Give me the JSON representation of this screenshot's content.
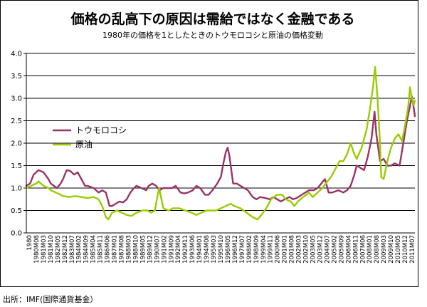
{
  "chart_data": {
    "type": "line",
    "title": "価格の乱高下の原因は需給ではなく金融である",
    "subtitle": "1980年の価格を1としたときのトウモロコシと原油の価格変動",
    "xlabel": "",
    "ylabel": "",
    "ylim": [
      0.0,
      4.0
    ],
    "yticks": [
      "0.0",
      "0.5",
      "1.0",
      "1.5",
      "2.0",
      "2.5",
      "3.0",
      "3.5",
      "4.0"
    ],
    "grid": true,
    "legend_position": "left-middle",
    "x_tick_labels": [
      "1980",
      "1980M08",
      "1981M03",
      "1981M10",
      "1982M05",
      "1982M12",
      "1983M07",
      "1984M02",
      "1984M09",
      "1985M04",
      "1985M11",
      "1986M06",
      "1987M01",
      "1987M08",
      "1988M03",
      "1988M10",
      "1989M05",
      "1989M12",
      "1990M07",
      "1991M02",
      "1991M09",
      "1992M04",
      "1992M11",
      "1993M06",
      "1994M01",
      "1994M08",
      "1995M03",
      "1995M10",
      "1996M05",
      "1996M12",
      "1997M07",
      "1998M02",
      "1998M09",
      "1999M04",
      "1999M11",
      "2000M06",
      "2001M01",
      "2001M08",
      "2002M03",
      "2002M10",
      "2003M05",
      "2003M12",
      "2004M07",
      "2005M02",
      "2005M09",
      "2006M04",
      "2006M11",
      "2007M06",
      "2008M01",
      "2008M08",
      "2009M03",
      "2009M10",
      "2010M05",
      "2010M12",
      "2011M07"
    ],
    "x": [
      1980.0,
      1981.0,
      1982.0,
      1983.0,
      1984.0,
      1985.0,
      1986.0,
      1987.0,
      1988.0,
      1989.0,
      1990.0,
      1991.0,
      1992.0,
      1993.0,
      1994.0,
      1995.0,
      1996.0,
      1997.0,
      1998.0,
      1999.0,
      2000.0,
      2001.0,
      2002.0,
      2003.0,
      2004.0,
      2005.0,
      2006.0,
      2007.0,
      2008.0,
      2009.0,
      2010.0,
      2011.0,
      2011.75
    ],
    "series": [
      {
        "name": "トウモロコシ",
        "color": "#993366",
        "points": [
          [
            1980.0,
            1.05
          ],
          [
            1980.3,
            1.1
          ],
          [
            1980.6,
            1.3
          ],
          [
            1981.0,
            1.4
          ],
          [
            1981.4,
            1.35
          ],
          [
            1981.8,
            1.2
          ],
          [
            1982.0,
            1.1
          ],
          [
            1982.5,
            1.0
          ],
          [
            1982.8,
            1.1
          ],
          [
            1983.0,
            1.2
          ],
          [
            1983.3,
            1.4
          ],
          [
            1983.6,
            1.38
          ],
          [
            1983.9,
            1.3
          ],
          [
            1984.2,
            1.35
          ],
          [
            1984.5,
            1.2
          ],
          [
            1984.8,
            1.05
          ],
          [
            1985.0,
            1.05
          ],
          [
            1985.5,
            1.0
          ],
          [
            1985.9,
            0.9
          ],
          [
            1986.2,
            0.95
          ],
          [
            1986.5,
            0.9
          ],
          [
            1986.8,
            0.6
          ],
          [
            1987.0,
            0.6
          ],
          [
            1987.3,
            0.65
          ],
          [
            1987.6,
            0.7
          ],
          [
            1987.9,
            0.68
          ],
          [
            1988.2,
            0.75
          ],
          [
            1988.5,
            0.9
          ],
          [
            1988.8,
            1.0
          ],
          [
            1989.0,
            1.05
          ],
          [
            1989.4,
            1.0
          ],
          [
            1989.8,
            0.95
          ],
          [
            1990.0,
            1.05
          ],
          [
            1990.3,
            1.1
          ],
          [
            1990.6,
            1.05
          ],
          [
            1990.9,
            0.95
          ],
          [
            1991.2,
            1.0
          ],
          [
            1991.6,
            1.0
          ],
          [
            1991.9,
            1.0
          ],
          [
            1992.2,
            1.05
          ],
          [
            1992.6,
            0.9
          ],
          [
            1992.9,
            0.88
          ],
          [
            1993.2,
            0.9
          ],
          [
            1993.6,
            0.95
          ],
          [
            1993.9,
            1.05
          ],
          [
            1994.2,
            1.0
          ],
          [
            1994.6,
            0.85
          ],
          [
            1994.9,
            0.85
          ],
          [
            1995.2,
            0.95
          ],
          [
            1995.6,
            1.1
          ],
          [
            1995.9,
            1.25
          ],
          [
            1996.1,
            1.55
          ],
          [
            1996.3,
            1.8
          ],
          [
            1996.45,
            1.9
          ],
          [
            1996.6,
            1.7
          ],
          [
            1996.9,
            1.1
          ],
          [
            1997.2,
            1.1
          ],
          [
            1997.5,
            1.05
          ],
          [
            1997.8,
            1.0
          ],
          [
            1998.1,
            0.95
          ],
          [
            1998.5,
            0.8
          ],
          [
            1998.8,
            0.75
          ],
          [
            1999.1,
            0.8
          ],
          [
            1999.5,
            0.78
          ],
          [
            1999.9,
            0.75
          ],
          [
            2000.2,
            0.8
          ],
          [
            2000.5,
            0.75
          ],
          [
            2000.8,
            0.7
          ],
          [
            2001.1,
            0.75
          ],
          [
            2001.5,
            0.8
          ],
          [
            2001.8,
            0.75
          ],
          [
            2002.1,
            0.78
          ],
          [
            2002.5,
            0.85
          ],
          [
            2002.8,
            0.9
          ],
          [
            2003.1,
            0.95
          ],
          [
            2003.5,
            0.95
          ],
          [
            2003.8,
            1.0
          ],
          [
            2004.1,
            1.1
          ],
          [
            2004.4,
            1.2
          ],
          [
            2004.7,
            0.9
          ],
          [
            2005.0,
            0.9
          ],
          [
            2005.5,
            0.95
          ],
          [
            2005.9,
            0.9
          ],
          [
            2006.2,
            0.95
          ],
          [
            2006.5,
            1.05
          ],
          [
            2006.8,
            1.3
          ],
          [
            2007.0,
            1.5
          ],
          [
            2007.3,
            1.45
          ],
          [
            2007.6,
            1.4
          ],
          [
            2007.9,
            1.7
          ],
          [
            2008.2,
            2.1
          ],
          [
            2008.45,
            2.7
          ],
          [
            2008.6,
            2.2
          ],
          [
            2008.9,
            1.6
          ],
          [
            2009.2,
            1.65
          ],
          [
            2009.5,
            1.5
          ],
          [
            2009.8,
            1.5
          ],
          [
            2010.1,
            1.55
          ],
          [
            2010.5,
            1.5
          ],
          [
            2010.8,
            2.0
          ],
          [
            2011.1,
            2.5
          ],
          [
            2011.4,
            2.9
          ],
          [
            2011.5,
            3.05
          ],
          [
            2011.65,
            2.8
          ],
          [
            2011.75,
            2.6
          ]
        ]
      },
      {
        "name": "原油",
        "color": "#99cc00",
        "points": [
          [
            1980.0,
            1.0
          ],
          [
            1980.4,
            1.05
          ],
          [
            1980.8,
            1.1
          ],
          [
            1981.0,
            1.15
          ],
          [
            1981.4,
            1.05
          ],
          [
            1981.8,
            1.0
          ],
          [
            1982.0,
            0.95
          ],
          [
            1982.4,
            0.9
          ],
          [
            1982.8,
            0.85
          ],
          [
            1983.0,
            0.82
          ],
          [
            1983.5,
            0.8
          ],
          [
            1984.0,
            0.82
          ],
          [
            1984.5,
            0.8
          ],
          [
            1985.0,
            0.78
          ],
          [
            1985.5,
            0.8
          ],
          [
            1985.9,
            0.75
          ],
          [
            1986.2,
            0.6
          ],
          [
            1986.5,
            0.35
          ],
          [
            1986.7,
            0.3
          ],
          [
            1987.0,
            0.45
          ],
          [
            1987.4,
            0.5
          ],
          [
            1987.8,
            0.45
          ],
          [
            1988.2,
            0.4
          ],
          [
            1988.6,
            0.38
          ],
          [
            1989.0,
            0.45
          ],
          [
            1989.5,
            0.5
          ],
          [
            1989.9,
            0.5
          ],
          [
            1990.2,
            0.45
          ],
          [
            1990.5,
            0.5
          ],
          [
            1990.7,
            0.8
          ],
          [
            1990.85,
            1.0
          ],
          [
            1991.0,
            0.8
          ],
          [
            1991.2,
            0.55
          ],
          [
            1991.6,
            0.5
          ],
          [
            1992.0,
            0.55
          ],
          [
            1992.5,
            0.55
          ],
          [
            1993.0,
            0.5
          ],
          [
            1993.5,
            0.45
          ],
          [
            1993.9,
            0.4
          ],
          [
            1994.3,
            0.45
          ],
          [
            1994.7,
            0.5
          ],
          [
            1995.0,
            0.5
          ],
          [
            1995.5,
            0.5
          ],
          [
            1995.9,
            0.55
          ],
          [
            1996.3,
            0.6
          ],
          [
            1996.7,
            0.65
          ],
          [
            1997.0,
            0.6
          ],
          [
            1997.5,
            0.55
          ],
          [
            1998.0,
            0.45
          ],
          [
            1998.5,
            0.35
          ],
          [
            1998.9,
            0.3
          ],
          [
            1999.2,
            0.4
          ],
          [
            1999.6,
            0.55
          ],
          [
            2000.0,
            0.75
          ],
          [
            2000.5,
            0.85
          ],
          [
            2000.9,
            0.85
          ],
          [
            2001.2,
            0.75
          ],
          [
            2001.6,
            0.7
          ],
          [
            2001.9,
            0.6
          ],
          [
            2002.2,
            0.7
          ],
          [
            2002.6,
            0.8
          ],
          [
            2002.9,
            0.85
          ],
          [
            2003.1,
            0.9
          ],
          [
            2003.4,
            0.8
          ],
          [
            2003.8,
            0.9
          ],
          [
            2004.2,
            1.0
          ],
          [
            2004.6,
            1.15
          ],
          [
            2004.9,
            1.25
          ],
          [
            2005.2,
            1.4
          ],
          [
            2005.6,
            1.6
          ],
          [
            2005.9,
            1.6
          ],
          [
            2006.2,
            1.75
          ],
          [
            2006.5,
            2.0
          ],
          [
            2006.8,
            1.75
          ],
          [
            2007.0,
            1.65
          ],
          [
            2007.4,
            1.9
          ],
          [
            2007.8,
            2.3
          ],
          [
            2008.1,
            2.8
          ],
          [
            2008.35,
            3.3
          ],
          [
            2008.5,
            3.7
          ],
          [
            2008.7,
            3.0
          ],
          [
            2008.9,
            2.0
          ],
          [
            2009.0,
            1.25
          ],
          [
            2009.2,
            1.2
          ],
          [
            2009.5,
            1.6
          ],
          [
            2009.8,
            1.9
          ],
          [
            2010.1,
            2.1
          ],
          [
            2010.4,
            2.2
          ],
          [
            2010.7,
            2.05
          ],
          [
            2010.95,
            2.4
          ],
          [
            2011.2,
            2.8
          ],
          [
            2011.35,
            3.25
          ],
          [
            2011.5,
            3.0
          ],
          [
            2011.65,
            2.85
          ],
          [
            2011.75,
            2.95
          ]
        ]
      }
    ],
    "source_note": "出所：IMF(国際通貨基金）"
  }
}
